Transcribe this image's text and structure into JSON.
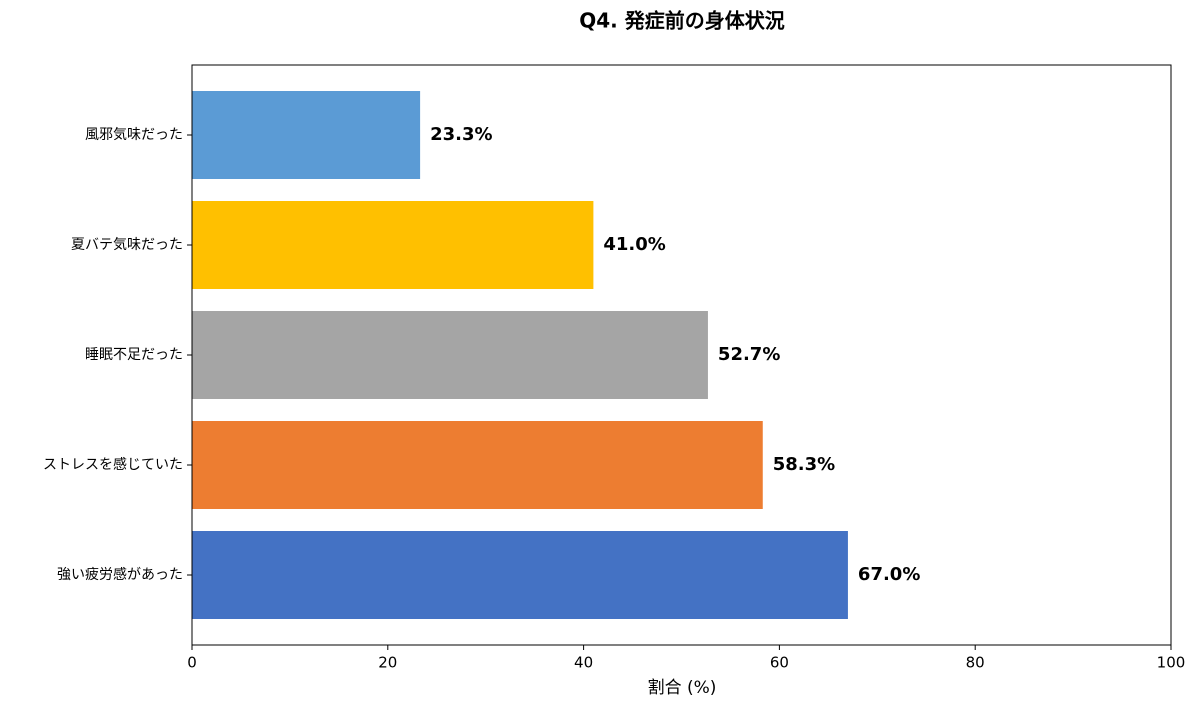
{
  "chart_data": {
    "type": "barh",
    "title": "Q4. 発症前の身体状況",
    "xlabel": "割合 (%)",
    "categories": [
      "風邪気味だった",
      "夏バテ気味だった",
      "睡眠不足だった",
      "ストレスを感じていた",
      "強い疲労感があった"
    ],
    "values": [
      23.3,
      41.0,
      52.7,
      58.3,
      67.0
    ],
    "value_labels": [
      "23.3%",
      "41.0%",
      "52.7%",
      "58.3%",
      "67.0%"
    ],
    "colors": [
      "#5b9bd5",
      "#ffc000",
      "#a5a5a5",
      "#ed7d31",
      "#4472c4"
    ],
    "xlim": [
      0,
      100
    ],
    "xticks": [
      0,
      20,
      40,
      60,
      80,
      100
    ]
  }
}
